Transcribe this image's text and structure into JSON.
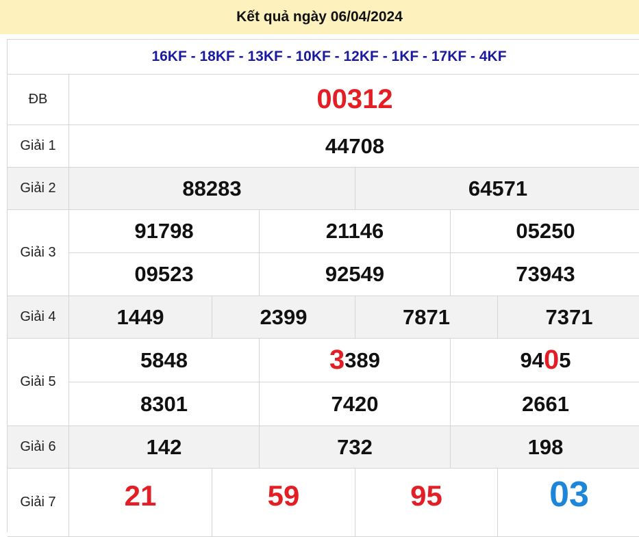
{
  "title": "Kết quả ngày 06/04/2024",
  "codes": "16KF - 18KF - 13KF - 10KF - 12KF - 1KF - 17KF - 4KF",
  "labels": {
    "db": "ĐB",
    "g1": "Giải 1",
    "g2": "Giải 2",
    "g3": "Giải 3",
    "g4": "Giải 4",
    "g5": "Giải 5",
    "g6": "Giải 6",
    "g7": "Giải 7"
  },
  "db": "00312",
  "g1": "44708",
  "g2": [
    "88283",
    "64571"
  ],
  "g3": [
    "91798",
    "21146",
    "05250",
    "09523",
    "92549",
    "73943"
  ],
  "g4": [
    "1449",
    "2399",
    "7871",
    "7371"
  ],
  "g5": [
    {
      "pre": "",
      "hl": "",
      "post": "5848"
    },
    {
      "pre": "",
      "hl": "3",
      "post": "389"
    },
    {
      "pre": "94",
      "hl": "0",
      "post": "5"
    },
    {
      "pre": "",
      "hl": "",
      "post": "8301"
    },
    {
      "pre": "",
      "hl": "",
      "post": "7420"
    },
    {
      "pre": "",
      "hl": "",
      "post": "2661"
    }
  ],
  "g6": [
    "142",
    "732",
    "198"
  ],
  "g7": [
    "21",
    "59",
    "95",
    "03"
  ],
  "colors": {
    "highlight": "#e31e24",
    "special": "#1e86d9",
    "header_bg": "#fdf1bd",
    "codes": "#1a1aa0"
  }
}
